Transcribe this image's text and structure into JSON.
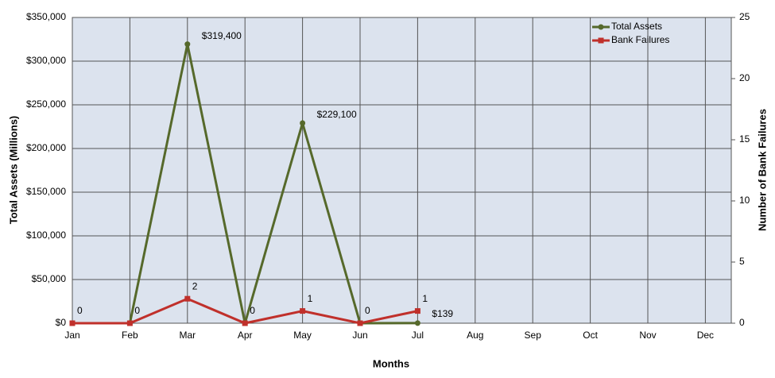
{
  "chart_data": {
    "type": "line",
    "x_label": "Months",
    "y_label": "Total Assets (Millions)",
    "y2_label": "Number of Bank Failures",
    "categories": [
      "Jan",
      "Feb",
      "Mar",
      "Apr",
      "May",
      "Jun",
      "Jul",
      "Aug",
      "Sep",
      "Oct",
      "Nov",
      "Dec"
    ],
    "series": [
      {
        "name": "Total Assets",
        "color": "#56692b",
        "marker": "circle",
        "values": [
          0,
          0,
          319400,
          0,
          229100,
          0,
          139,
          null,
          null,
          null,
          null,
          null
        ],
        "value_labels": [
          null,
          null,
          "$319,400",
          null,
          "$229,100",
          null,
          "$139",
          null,
          null,
          null,
          null,
          null
        ]
      },
      {
        "name": "Bank Failures",
        "color": "#c0302b",
        "marker": "square",
        "axis": "y2",
        "values": [
          0,
          0,
          2,
          0,
          1,
          0,
          1,
          null,
          null,
          null,
          null,
          null
        ]
      }
    ],
    "ylim": [
      0,
      350000
    ],
    "yticks": [
      {
        "value": 0,
        "label": "$0"
      },
      {
        "value": 50000,
        "label": "$50,000"
      },
      {
        "value": 100000,
        "label": "$100,000"
      },
      {
        "value": 150000,
        "label": "$150,000"
      },
      {
        "value": 200000,
        "label": "$200,000"
      },
      {
        "value": 250000,
        "label": "$250,000"
      },
      {
        "value": 300000,
        "label": "$300,000"
      },
      {
        "value": 350000,
        "label": "$350,000"
      }
    ],
    "y2lim": [
      0,
      25
    ],
    "y2ticks": [
      0,
      5,
      10,
      15,
      20,
      25
    ],
    "grid": true,
    "legend": "top-right"
  }
}
